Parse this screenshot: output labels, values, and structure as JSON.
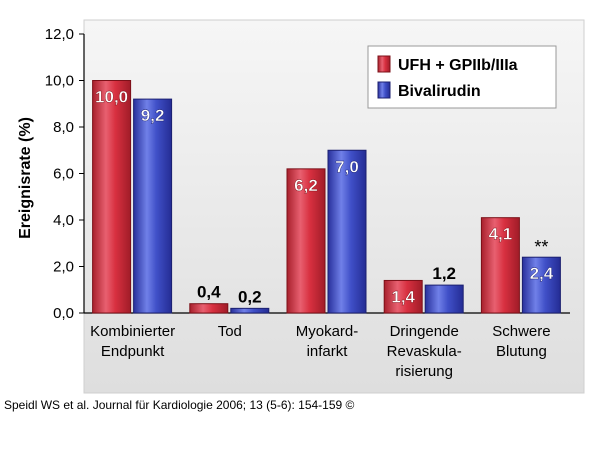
{
  "chart_data": {
    "type": "bar",
    "ylabel": "Ereignisrate (%)",
    "ylim": [
      0,
      12
    ],
    "yticks": [
      "0,0",
      "2,0",
      "4,0",
      "6,0",
      "8,0",
      "10,0",
      "12,0"
    ],
    "categories": [
      [
        "Kombinierter",
        "Endpunkt"
      ],
      [
        "Tod"
      ],
      [
        "Myokard-",
        "infarkt"
      ],
      [
        "Dringende",
        "Revaskula-",
        "risierung"
      ],
      [
        "Schwere",
        "Blutung"
      ]
    ],
    "series": [
      {
        "name": "UFH + GPIIb/IIIa",
        "values": [
          10.0,
          0.4,
          6.2,
          1.4,
          4.1
        ],
        "labels": [
          "10,0",
          "0,4",
          "6,2",
          "1,4",
          "4,1"
        ]
      },
      {
        "name": "Bivalirudin",
        "values": [
          9.2,
          0.2,
          7.0,
          1.2,
          2.4
        ],
        "labels": [
          "9,2",
          "0,2",
          "7,0",
          "1,2",
          "2,4"
        ]
      }
    ],
    "annotations": [
      {
        "category_index": 4,
        "series_index": 1,
        "text": "**"
      }
    ],
    "legend_position": "top-right",
    "colors": {
      "series1": "#d0303c",
      "series1_light": "#f0a0a8",
      "series2": "#3848b8",
      "series2_light": "#a0a8f0",
      "plot_bg": "#e8e8e8"
    }
  },
  "caption": "Speidl WS et al. Journal für Kardiologie 2006; 13 (5-6): 154-159 ©"
}
